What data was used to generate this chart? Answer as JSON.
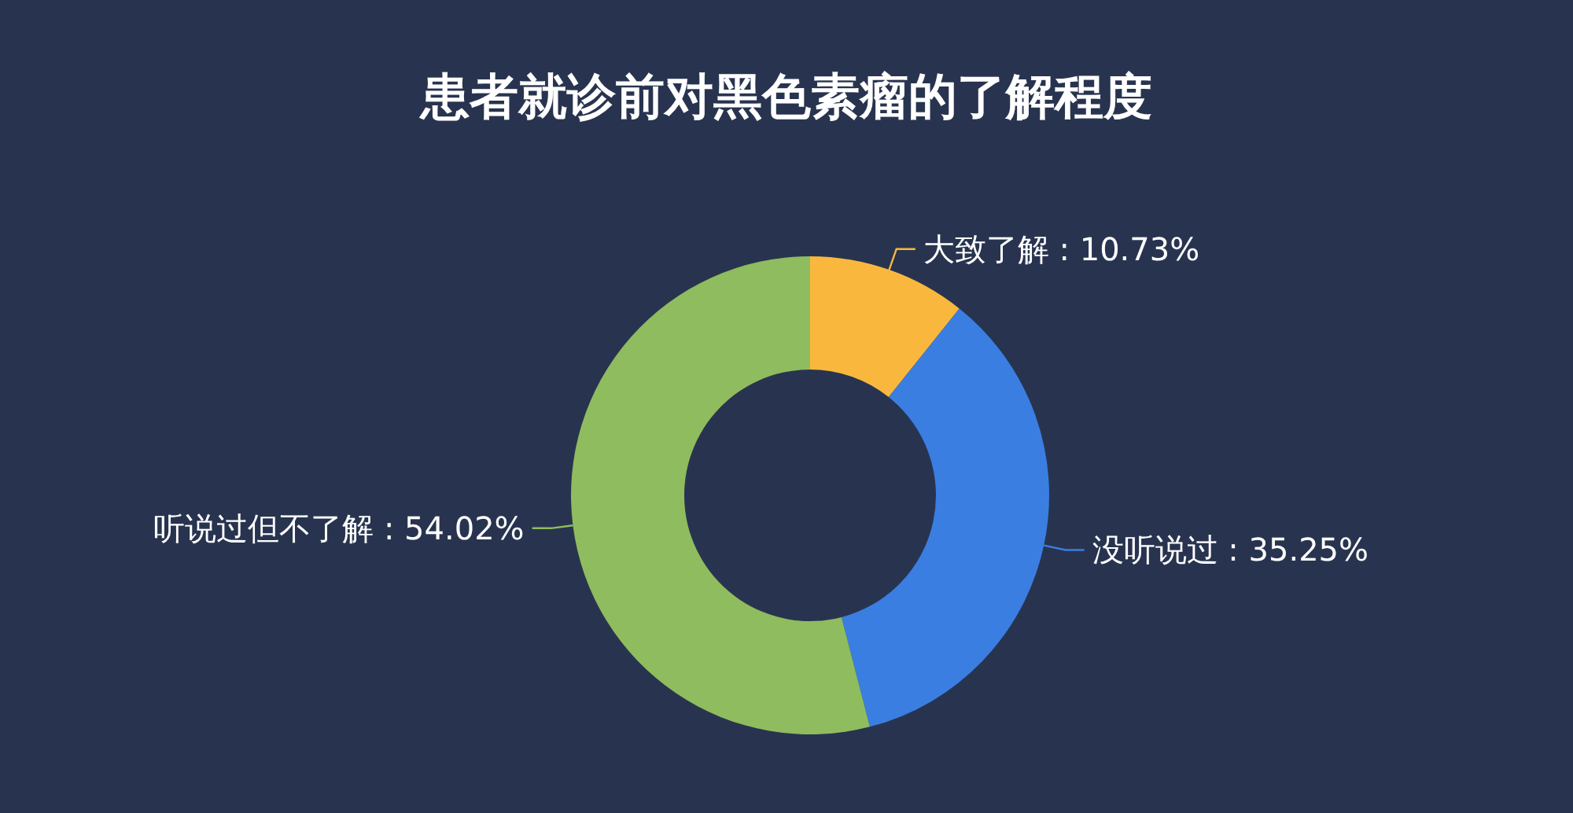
{
  "chart_data": {
    "type": "donut",
    "title": "患者就诊前对黑色素瘤的了解程度",
    "categories": [
      "大致了解",
      "没听说过",
      "听说过但不了解"
    ],
    "values": [
      10.73,
      35.25,
      54.02
    ],
    "colors": [
      "#f9b83d",
      "#3a7ee2",
      "#8fbc5e"
    ],
    "value_labels": [
      " : 10.73%",
      " : 35.25%",
      " : 54.02%"
    ],
    "legend": false
  }
}
